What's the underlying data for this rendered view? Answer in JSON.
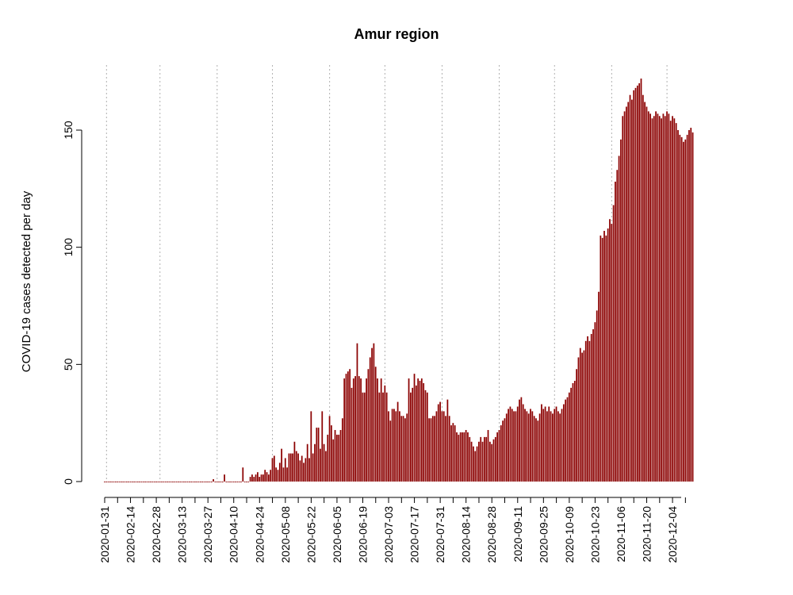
{
  "chart_data": {
    "type": "bar",
    "title": "Amur region",
    "xlabel": "",
    "ylabel": "COVID-19 cases detected per day",
    "ylim": [
      0,
      175
    ],
    "yticks": [
      0,
      50,
      100,
      150
    ],
    "x_start": "2020-01-31",
    "x_end": "2020-12-13",
    "date_tick_labels": [
      "2020-01-31",
      "2020-02-14",
      "2020-02-28",
      "2020-03-13",
      "2020-03-27",
      "2020-04-10",
      "2020-04-24",
      "2020-05-08",
      "2020-05-22",
      "2020-06-05",
      "2020-06-19",
      "2020-07-03",
      "2020-07-17",
      "2020-07-31",
      "2020-08-14",
      "2020-08-28",
      "2020-09-11",
      "2020-09-25",
      "2020-10-09",
      "2020-10-23",
      "2020-11-06",
      "2020-11-20",
      "2020-12-04"
    ],
    "monthly_gridlines": [
      "2020-02-01",
      "2020-03-01",
      "2020-04-01",
      "2020-05-01",
      "2020-06-01",
      "2020-07-01",
      "2020-08-01",
      "2020-09-01",
      "2020-10-01",
      "2020-11-01",
      "2020-12-01"
    ],
    "bar_color": "#8B0000",
    "grid": true,
    "values": [
      0,
      0,
      0,
      0,
      0,
      0,
      0,
      0,
      0,
      0,
      0,
      0,
      0,
      0,
      0,
      0,
      0,
      0,
      0,
      0,
      0,
      0,
      0,
      0,
      0,
      0,
      0,
      0,
      0,
      0,
      0,
      0,
      0,
      0,
      0,
      0,
      0,
      0,
      0,
      0,
      0,
      0,
      0,
      0,
      0,
      0,
      0,
      0,
      0,
      0,
      0,
      0,
      0,
      0,
      0,
      0,
      0,
      0,
      0,
      1,
      0,
      0,
      0,
      0,
      0,
      3,
      0,
      0,
      0,
      0,
      0,
      0,
      0,
      0,
      0,
      6,
      0,
      0,
      0,
      2,
      3,
      2,
      3,
      4,
      2,
      3,
      3,
      5,
      4,
      3,
      5,
      10,
      11,
      6,
      5,
      8,
      14,
      6,
      10,
      6,
      12,
      12,
      12,
      17,
      13,
      12,
      9,
      11,
      8,
      10,
      16,
      10,
      30,
      12,
      16,
      23,
      23,
      14,
      30,
      16,
      13,
      20,
      28,
      24,
      18,
      22,
      20,
      20,
      22,
      27,
      44,
      46,
      47,
      48,
      40,
      44,
      45,
      59,
      45,
      44,
      38,
      38,
      44,
      48,
      53,
      57,
      59,
      49,
      44,
      38,
      44,
      38,
      41,
      38,
      30,
      26,
      31,
      31,
      30,
      34,
      30,
      28,
      28,
      27,
      29,
      44,
      38,
      40,
      46,
      41,
      44,
      43,
      44,
      42,
      39,
      38,
      27,
      27,
      28,
      28,
      30,
      33,
      34,
      30,
      30,
      28,
      35,
      28,
      24,
      25,
      24,
      21,
      20,
      21,
      21,
      21,
      22,
      21,
      19,
      17,
      15,
      13,
      15,
      17,
      19,
      17,
      19,
      19,
      22,
      17,
      16,
      18,
      19,
      21,
      22,
      24,
      26,
      27,
      29,
      31,
      32,
      31,
      30,
      30,
      32,
      35,
      36,
      33,
      31,
      30,
      29,
      31,
      30,
      28,
      27,
      26,
      29,
      33,
      31,
      32,
      30,
      32,
      30,
      29,
      31,
      32,
      30,
      29,
      31,
      33,
      35,
      36,
      38,
      40,
      42,
      43,
      48,
      53,
      57,
      55,
      56,
      60,
      62,
      60,
      63,
      65,
      68,
      73,
      81,
      105,
      104,
      107,
      105,
      108,
      112,
      110,
      118,
      128,
      133,
      139,
      146,
      156,
      158,
      160,
      162,
      165,
      163,
      167,
      168,
      169,
      170,
      172,
      165,
      162,
      160,
      158,
      157,
      155,
      156,
      158,
      157,
      156,
      155,
      157,
      156,
      158,
      157,
      154,
      156,
      155,
      153,
      150,
      148,
      147,
      145,
      146,
      148,
      150,
      151,
      149
    ]
  }
}
